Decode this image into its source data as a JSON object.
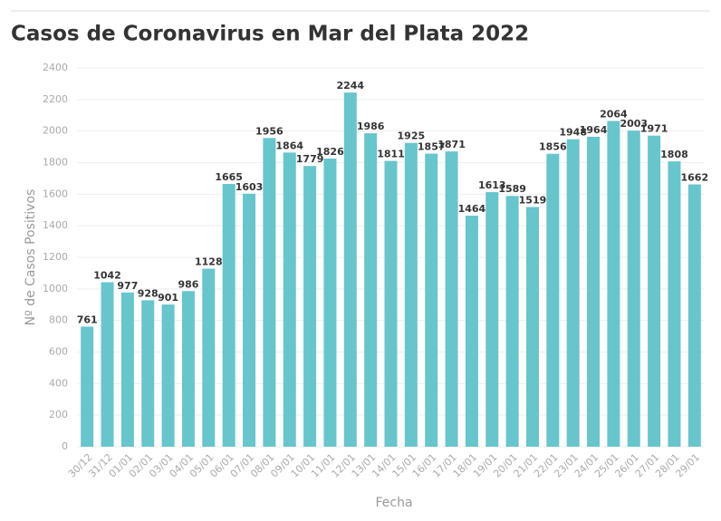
{
  "chart_data": {
    "type": "bar",
    "title": "Casos de Coronavirus en Mar del Plata 2022",
    "x_label": "Fecha",
    "y_label": "Nº de Casos Positivos",
    "categories": [
      "30/12",
      "31/12",
      "01/01",
      "02/01",
      "03/01",
      "04/01",
      "05/01",
      "06/01",
      "07/01",
      "08/01",
      "09/01",
      "10/01",
      "11/01",
      "12/01",
      "13/01",
      "14/01",
      "15/01",
      "16/01",
      "17/01",
      "18/01",
      "19/01",
      "20/01",
      "21/01",
      "22/01",
      "23/01",
      "24/01",
      "25/01",
      "26/01",
      "27/01",
      "28/01",
      "29/01"
    ],
    "values": [
      761,
      1042,
      977,
      928,
      901,
      986,
      1128,
      1665,
      1603,
      1956,
      1864,
      1779,
      1826,
      2244,
      1986,
      1811,
      1925,
      1857,
      1871,
      1464,
      1613,
      1589,
      1519,
      1856,
      1948,
      1964,
      2064,
      2003,
      1971,
      1808,
      1662
    ],
    "color": "#67c5cc",
    "ylim": [
      0,
      2400
    ],
    "yticks": [
      0,
      200,
      400,
      600,
      800,
      1000,
      1200,
      1400,
      1600,
      1800,
      2000,
      2200,
      2400
    ],
    "grid": true
  }
}
